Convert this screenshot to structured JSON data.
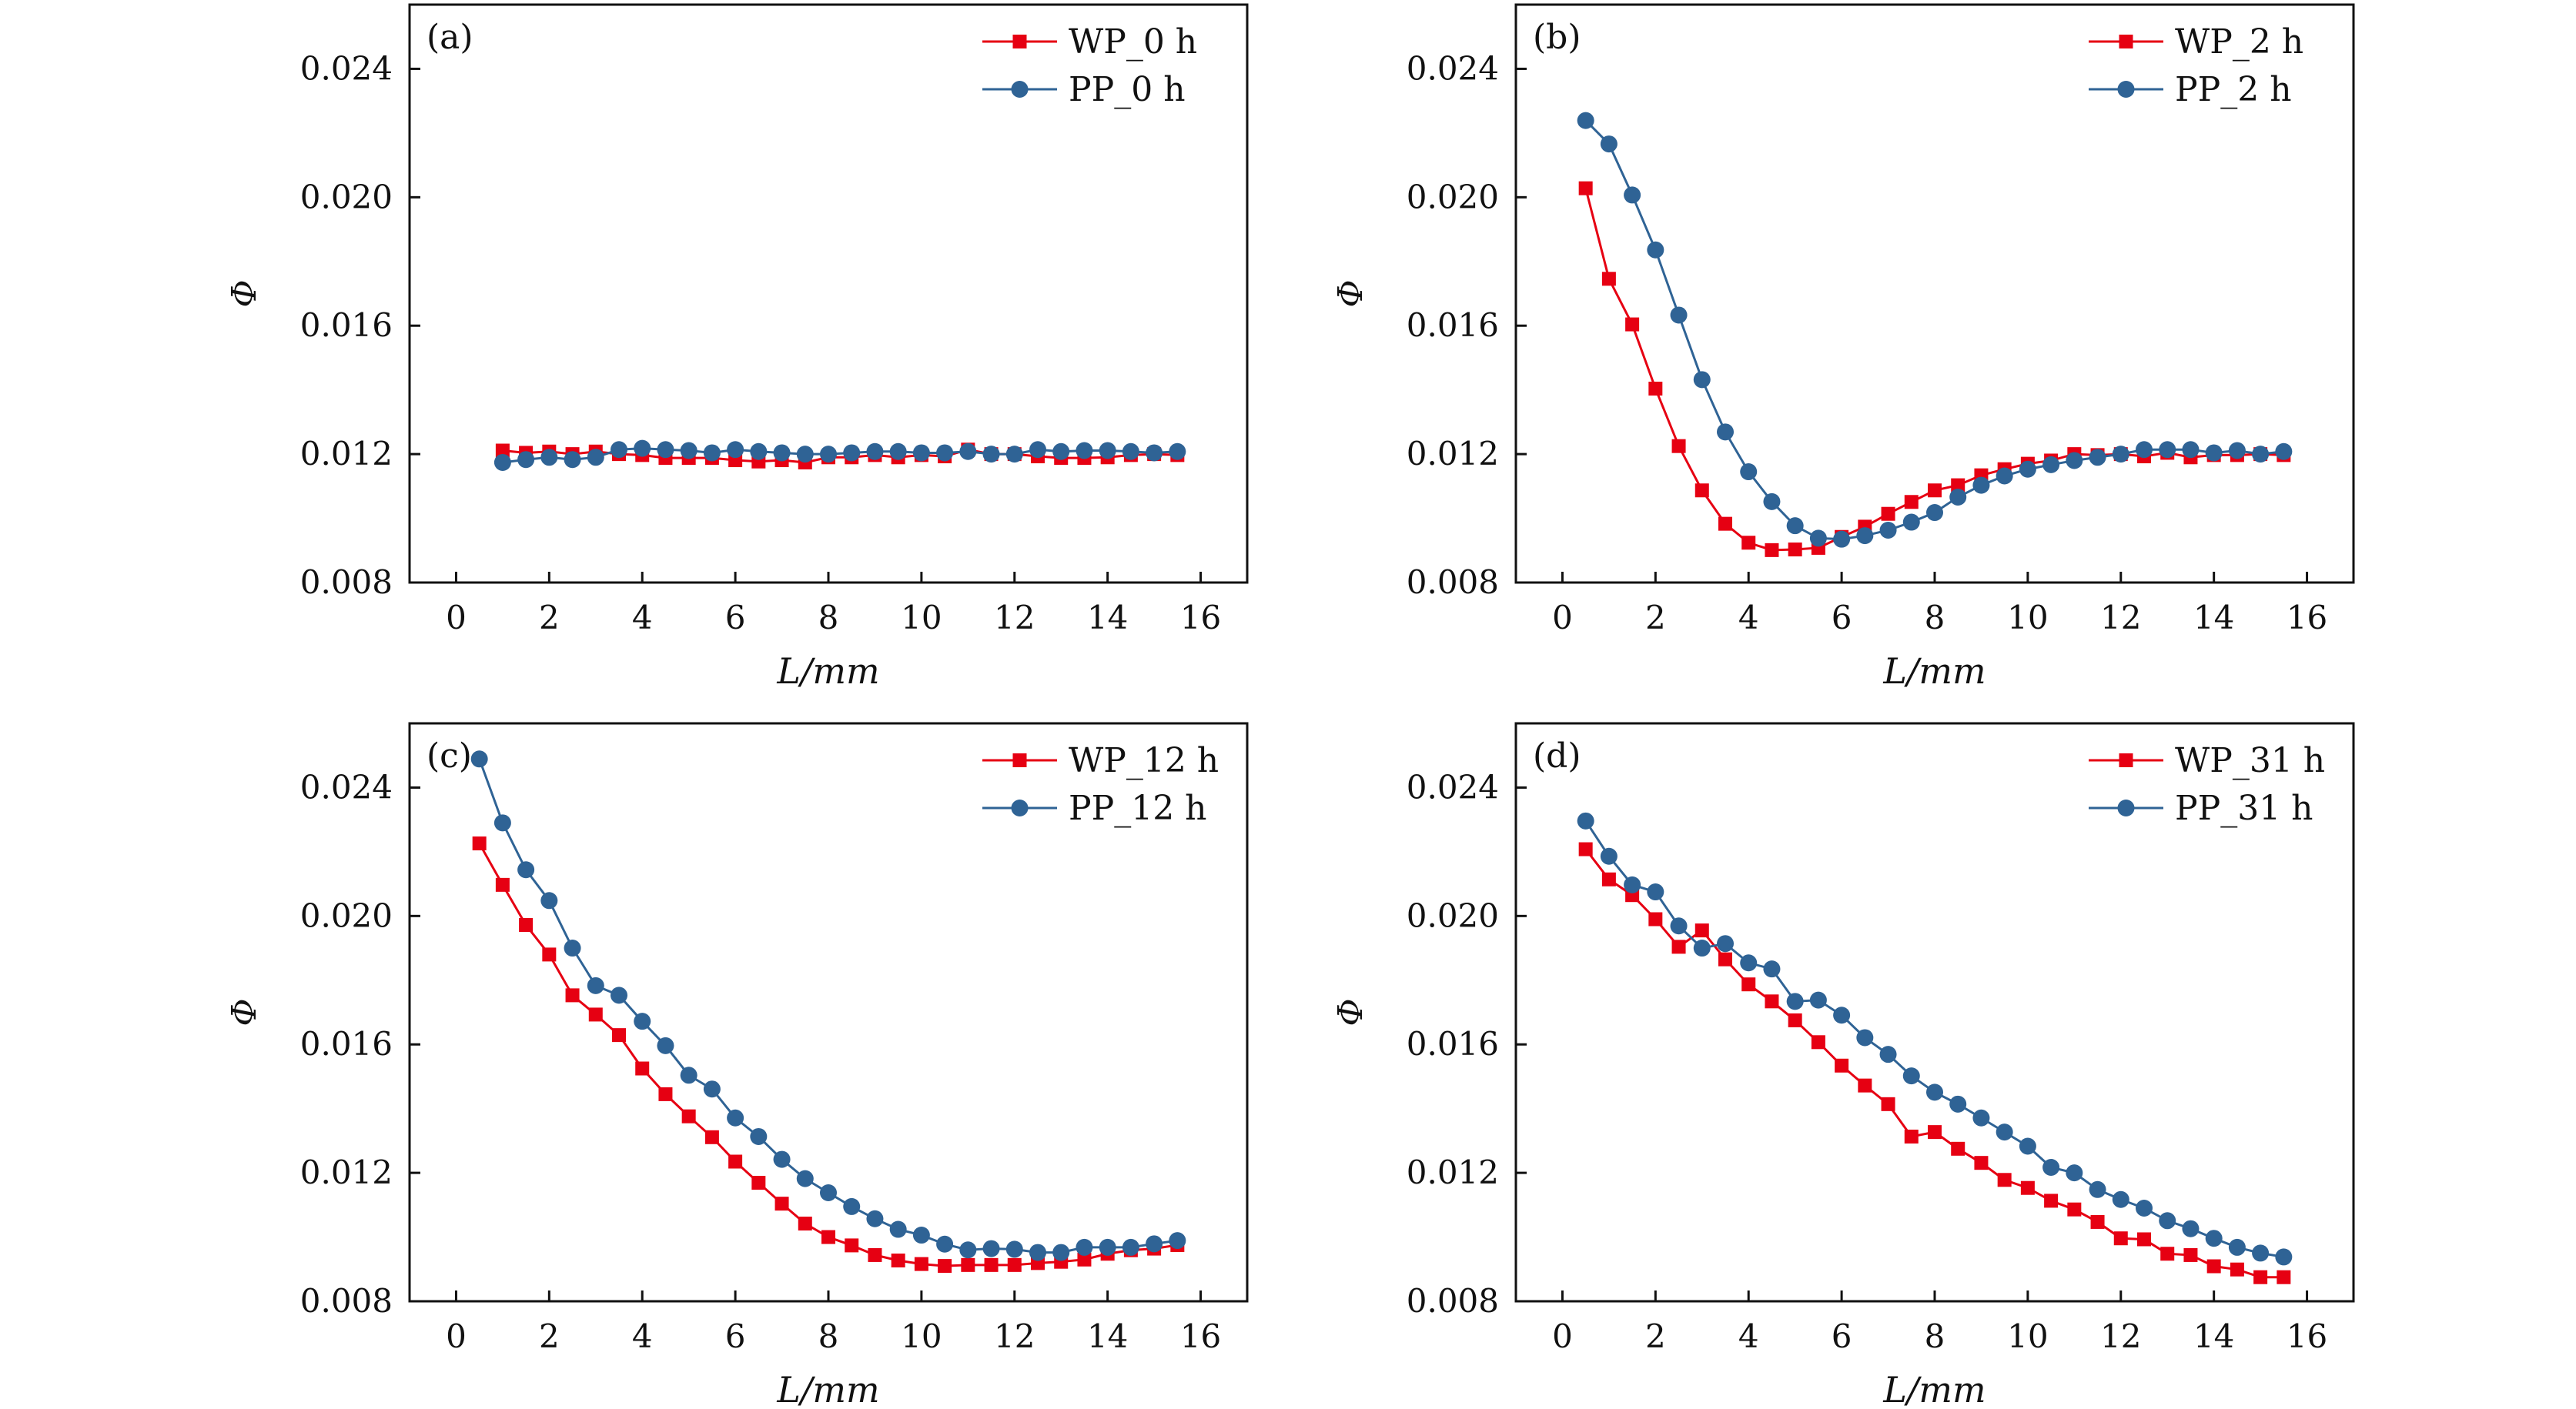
{
  "colors": {
    "WP": "#e60012",
    "PP": "#2f6395"
  },
  "chart_data": [
    {
      "type": "line",
      "panel_label": "(a)",
      "xlabel": "L/mm",
      "ylabel": "Φ",
      "xlim": [
        -1,
        17
      ],
      "ylim": [
        0.008,
        0.026
      ],
      "xticks": [
        0,
        2,
        4,
        6,
        8,
        10,
        12,
        14,
        16
      ],
      "yticks": [
        "0.008",
        "0.012",
        "0.016",
        "0.020",
        "0.024"
      ],
      "legend_position": "top-right",
      "x": [
        1,
        1.5,
        2,
        2.5,
        3,
        3.5,
        4,
        4.5,
        5,
        5.5,
        6,
        6.5,
        7,
        7.5,
        8,
        8.5,
        9,
        9.5,
        10,
        10.5,
        11,
        11.5,
        12,
        12.5,
        13,
        13.5,
        14,
        14.5,
        15,
        15.5
      ],
      "series": [
        {
          "name": "WP_0 h",
          "marker": "square",
          "values": [
            0.01211,
            0.01204,
            0.01208,
            0.012,
            0.01208,
            0.012,
            0.01197,
            0.01188,
            0.01188,
            0.01188,
            0.01181,
            0.01177,
            0.01181,
            0.01174,
            0.0119,
            0.0119,
            0.01197,
            0.0119,
            0.01197,
            0.01193,
            0.01214,
            0.012,
            0.012,
            0.01193,
            0.01188,
            0.01188,
            0.0119,
            0.01197,
            0.012,
            0.01197
          ]
        },
        {
          "name": "PP_0 h",
          "marker": "circle",
          "values": [
            0.01174,
            0.01183,
            0.0119,
            0.01183,
            0.0119,
            0.01214,
            0.01218,
            0.01214,
            0.01211,
            0.01204,
            0.01214,
            0.01208,
            0.01204,
            0.012,
            0.012,
            0.01204,
            0.01208,
            0.01208,
            0.01204,
            0.01204,
            0.01208,
            0.012,
            0.012,
            0.01214,
            0.01208,
            0.01211,
            0.01211,
            0.01208,
            0.01204,
            0.01208
          ]
        }
      ]
    },
    {
      "type": "line",
      "panel_label": "(b)",
      "xlabel": "L/mm",
      "ylabel": "Φ",
      "xlim": [
        -1,
        17
      ],
      "ylim": [
        0.008,
        0.026
      ],
      "xticks": [
        0,
        2,
        4,
        6,
        8,
        10,
        12,
        14,
        16
      ],
      "yticks": [
        "0.008",
        "0.012",
        "0.016",
        "0.020",
        "0.024"
      ],
      "legend_position": "top-right",
      "x": [
        0.5,
        1,
        1.5,
        2,
        2.5,
        3,
        3.5,
        4,
        4.5,
        5,
        5.5,
        6,
        6.5,
        7,
        7.5,
        8,
        8.5,
        9,
        9.5,
        10,
        10.5,
        11,
        11.5,
        12,
        12.5,
        13,
        13.5,
        14,
        14.5,
        15,
        15.5
      ],
      "series": [
        {
          "name": "WP_2 h",
          "marker": "square",
          "values": [
            0.02028,
            0.01746,
            0.01604,
            0.01404,
            0.01225,
            0.01087,
            0.00983,
            0.00924,
            0.00901,
            0.00903,
            0.00908,
            0.00942,
            0.00974,
            0.01014,
            0.01051,
            0.01087,
            0.01103,
            0.01134,
            0.01153,
            0.0117,
            0.0118,
            0.012,
            0.01197,
            0.012,
            0.01193,
            0.01204,
            0.0119,
            0.01197,
            0.01197,
            0.012,
            0.01197
          ]
        },
        {
          "name": "PP_2 h",
          "marker": "circle",
          "values": [
            0.02239,
            0.02166,
            0.02007,
            0.01836,
            0.01633,
            0.01432,
            0.01269,
            0.01145,
            0.01052,
            0.00977,
            0.00938,
            0.00935,
            0.00946,
            0.00963,
            0.00988,
            0.01018,
            0.01066,
            0.01103,
            0.01132,
            0.01153,
            0.01167,
            0.0118,
            0.0119,
            0.012,
            0.01214,
            0.01214,
            0.01214,
            0.01204,
            0.01211,
            0.012,
            0.01208
          ]
        }
      ]
    },
    {
      "type": "line",
      "panel_label": "(c)",
      "xlabel": "L/mm",
      "ylabel": "Φ",
      "xlim": [
        -1,
        17
      ],
      "ylim": [
        0.008,
        0.026
      ],
      "xticks": [
        0,
        2,
        4,
        6,
        8,
        10,
        12,
        14,
        16
      ],
      "yticks": [
        "0.008",
        "0.012",
        "0.016",
        "0.020",
        "0.024"
      ],
      "legend_position": "top-right",
      "x": [
        0.5,
        1,
        1.5,
        2,
        2.5,
        3,
        3.5,
        4,
        4.5,
        5,
        5.5,
        6,
        6.5,
        7,
        7.5,
        8,
        8.5,
        9,
        9.5,
        10,
        10.5,
        11,
        11.5,
        12,
        12.5,
        13,
        13.5,
        14,
        14.5,
        15,
        15.5
      ],
      "series": [
        {
          "name": "WP_12 h",
          "marker": "square",
          "values": [
            0.02226,
            0.02097,
            0.01972,
            0.0188,
            0.01753,
            0.01693,
            0.01629,
            0.01525,
            0.01445,
            0.01376,
            0.01311,
            0.01235,
            0.01169,
            0.01104,
            0.01042,
            0.01,
            0.00974,
            0.00944,
            0.00927,
            0.00916,
            0.0091,
            0.00913,
            0.00913,
            0.00913,
            0.00919,
            0.00923,
            0.0093,
            0.00948,
            0.00959,
            0.00964,
            0.00975
          ]
        },
        {
          "name": "PP_12 h",
          "marker": "circle",
          "values": [
            0.02489,
            0.0229,
            0.02144,
            0.02048,
            0.019,
            0.01783,
            0.01753,
            0.01672,
            0.01596,
            0.01504,
            0.01461,
            0.01371,
            0.01313,
            0.01242,
            0.01182,
            0.01138,
            0.01095,
            0.01057,
            0.01024,
            0.01006,
            0.00978,
            0.0096,
            0.00964,
            0.00962,
            0.00952,
            0.00952,
            0.00968,
            0.00968,
            0.00968,
            0.00979,
            0.00989
          ]
        }
      ]
    },
    {
      "type": "line",
      "panel_label": "(d)",
      "xlabel": "L/mm",
      "ylabel": "Φ",
      "xlim": [
        -1,
        17
      ],
      "ylim": [
        0.008,
        0.026
      ],
      "xticks": [
        0,
        2,
        4,
        6,
        8,
        10,
        12,
        14,
        16
      ],
      "yticks": [
        "0.008",
        "0.012",
        "0.016",
        "0.020",
        "0.024"
      ],
      "legend_position": "top-right",
      "x": [
        0.5,
        1,
        1.5,
        2,
        2.5,
        3,
        3.5,
        4,
        4.5,
        5,
        5.5,
        6,
        6.5,
        7,
        7.5,
        8,
        8.5,
        9,
        9.5,
        10,
        10.5,
        11,
        11.5,
        12,
        12.5,
        13,
        13.5,
        14,
        14.5,
        15,
        15.5
      ],
      "series": [
        {
          "name": "WP_31 h",
          "marker": "square",
          "values": [
            0.02208,
            0.02114,
            0.02065,
            0.0199,
            0.01904,
            0.01955,
            0.01865,
            0.01787,
            0.01734,
            0.01675,
            0.01607,
            0.01534,
            0.01472,
            0.01414,
            0.01313,
            0.01327,
            0.01275,
            0.01231,
            0.01178,
            0.01153,
            0.01113,
            0.01086,
            0.01047,
            0.00996,
            0.00993,
            0.00948,
            0.00944,
            0.00909,
            0.00899,
            0.00875,
            0.00875
          ]
        },
        {
          "name": "PP_31 h",
          "marker": "circle",
          "values": [
            0.02296,
            0.02186,
            0.02097,
            0.02075,
            0.01969,
            0.019,
            0.01914,
            0.01854,
            0.01835,
            0.01734,
            0.01738,
            0.01691,
            0.01621,
            0.01569,
            0.01502,
            0.01451,
            0.01414,
            0.01371,
            0.01327,
            0.01283,
            0.01217,
            0.012,
            0.01148,
            0.01117,
            0.0109,
            0.01051,
            0.01026,
            0.00996,
            0.00968,
            0.0095,
            0.00938
          ]
        }
      ]
    }
  ]
}
